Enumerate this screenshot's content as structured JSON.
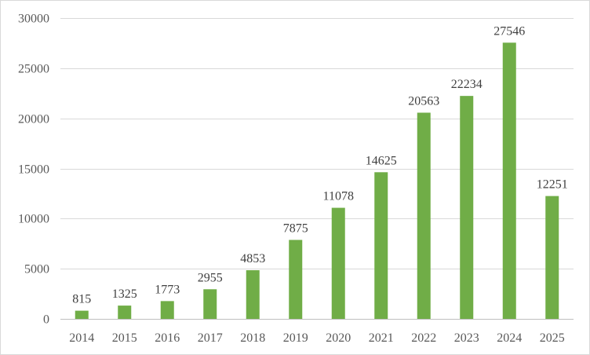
{
  "chart_data": {
    "type": "bar",
    "title": "",
    "xlabel": "",
    "ylabel": "",
    "categories": [
      "2014",
      "2015",
      "2016",
      "2017",
      "2018",
      "2019",
      "2020",
      "2021",
      "2022",
      "2023",
      "2024",
      "2025"
    ],
    "values": [
      815,
      1325,
      1773,
      2955,
      4853,
      7875,
      11078,
      14625,
      20563,
      22234,
      27546,
      12251
    ],
    "ylim": [
      0,
      30000
    ],
    "yticks": [
      0,
      5000,
      10000,
      15000,
      20000,
      25000,
      30000
    ],
    "grid": true,
    "legend": "none",
    "bar_color": "#70ad47"
  }
}
